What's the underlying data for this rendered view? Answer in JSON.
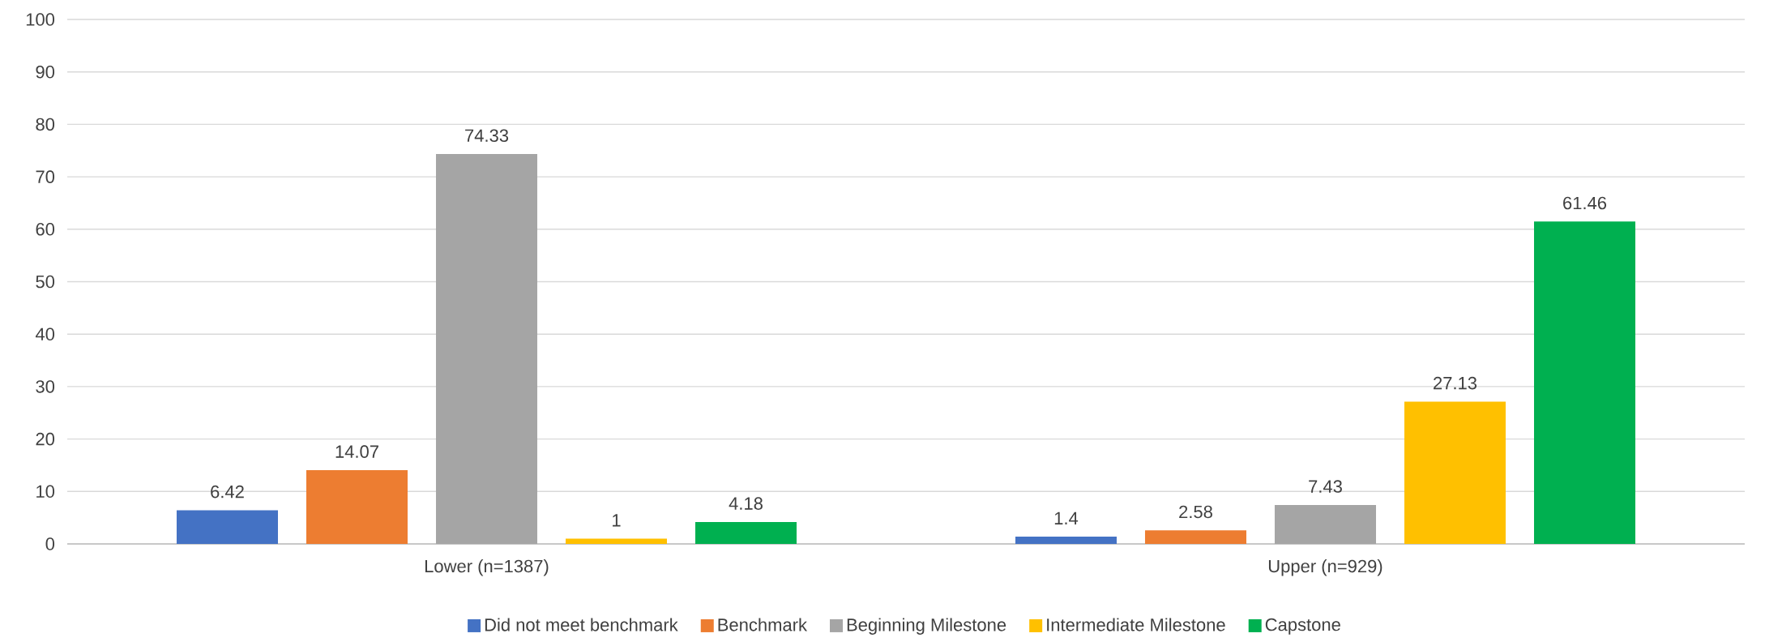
{
  "chart_data": {
    "type": "bar",
    "categories": [
      "Lower (n=1387)",
      "Upper (n=929)"
    ],
    "series": [
      {
        "name": "Did not meet benchmark",
        "color": "#4472c4",
        "values": [
          6.42,
          1.4
        ]
      },
      {
        "name": "Benchmark",
        "color": "#ed7d31",
        "values": [
          14.07,
          2.58
        ]
      },
      {
        "name": "Beginning Milestone",
        "color": "#a5a5a5",
        "values": [
          74.33,
          7.43
        ]
      },
      {
        "name": "Intermediate Milestone",
        "color": "#ffc000",
        "values": [
          1,
          27.13
        ]
      },
      {
        "name": "Capstone",
        "color": "#00b050",
        "values": [
          4.18,
          61.46
        ]
      }
    ],
    "ylim": [
      0,
      100
    ],
    "yticks": [
      0,
      10,
      20,
      30,
      40,
      50,
      60,
      70,
      80,
      90,
      100
    ],
    "grid": "y",
    "legend": "bottom",
    "data_labels": true
  }
}
